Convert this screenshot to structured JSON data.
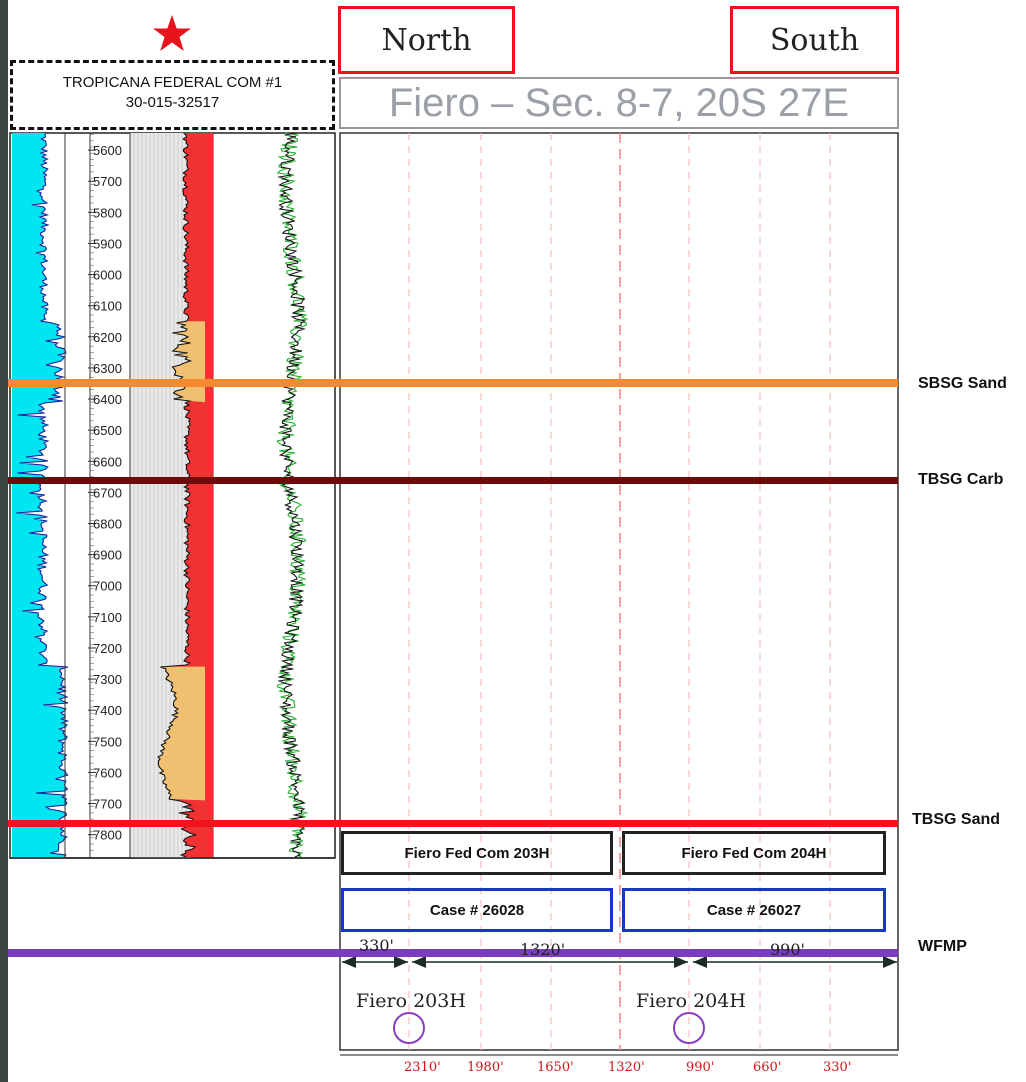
{
  "header": {
    "star_color": "#e8141c",
    "north_label": "North",
    "south_label": "South",
    "title": "Fiero – Sec. 8-7, 20S 27E"
  },
  "well": {
    "name": "TROPICANA FEDERAL COM #1",
    "api": "30-015-32517"
  },
  "depth_ticks": [
    "5600",
    "5700",
    "5800",
    "5900",
    "6000",
    "6100",
    "6200",
    "6300",
    "6400",
    "6500",
    "6600",
    "6700",
    "6800",
    "6900",
    "7000",
    "7100",
    "7200",
    "7300",
    "7400",
    "7500",
    "7600",
    "7700",
    "7800"
  ],
  "formation_tops": [
    {
      "name": "SBSG Sand",
      "color": "#f58a31"
    },
    {
      "name": "TBSG Carb",
      "color": "#6e0a0a"
    },
    {
      "name": "TBSG Sand",
      "color": "#f2141c"
    },
    {
      "name": "WFMP",
      "color": "#7a3dbf"
    }
  ],
  "wells_proposed": [
    {
      "label": "Fiero Fed Com 203H",
      "case": "Case # 26028",
      "map_label": "Fiero 203H"
    },
    {
      "label": "Fiero Fed Com 204H",
      "case": "Case # 26027",
      "map_label": "Fiero 204H"
    }
  ],
  "spacing": [
    "330'",
    "1320'",
    "990'"
  ],
  "section_ticks": [
    "2310'",
    "1980'",
    "1650'",
    "1320'",
    "990'",
    "660'",
    "330'"
  ],
  "colors": {
    "gr_fill": "#00e6f0",
    "res_fill": "#f03232",
    "sand_fill": "#f0c070",
    "background": "#3d4741",
    "case_border": "#1737c9",
    "tick_red": "#d21414",
    "circle": "#8a3dc0"
  }
}
